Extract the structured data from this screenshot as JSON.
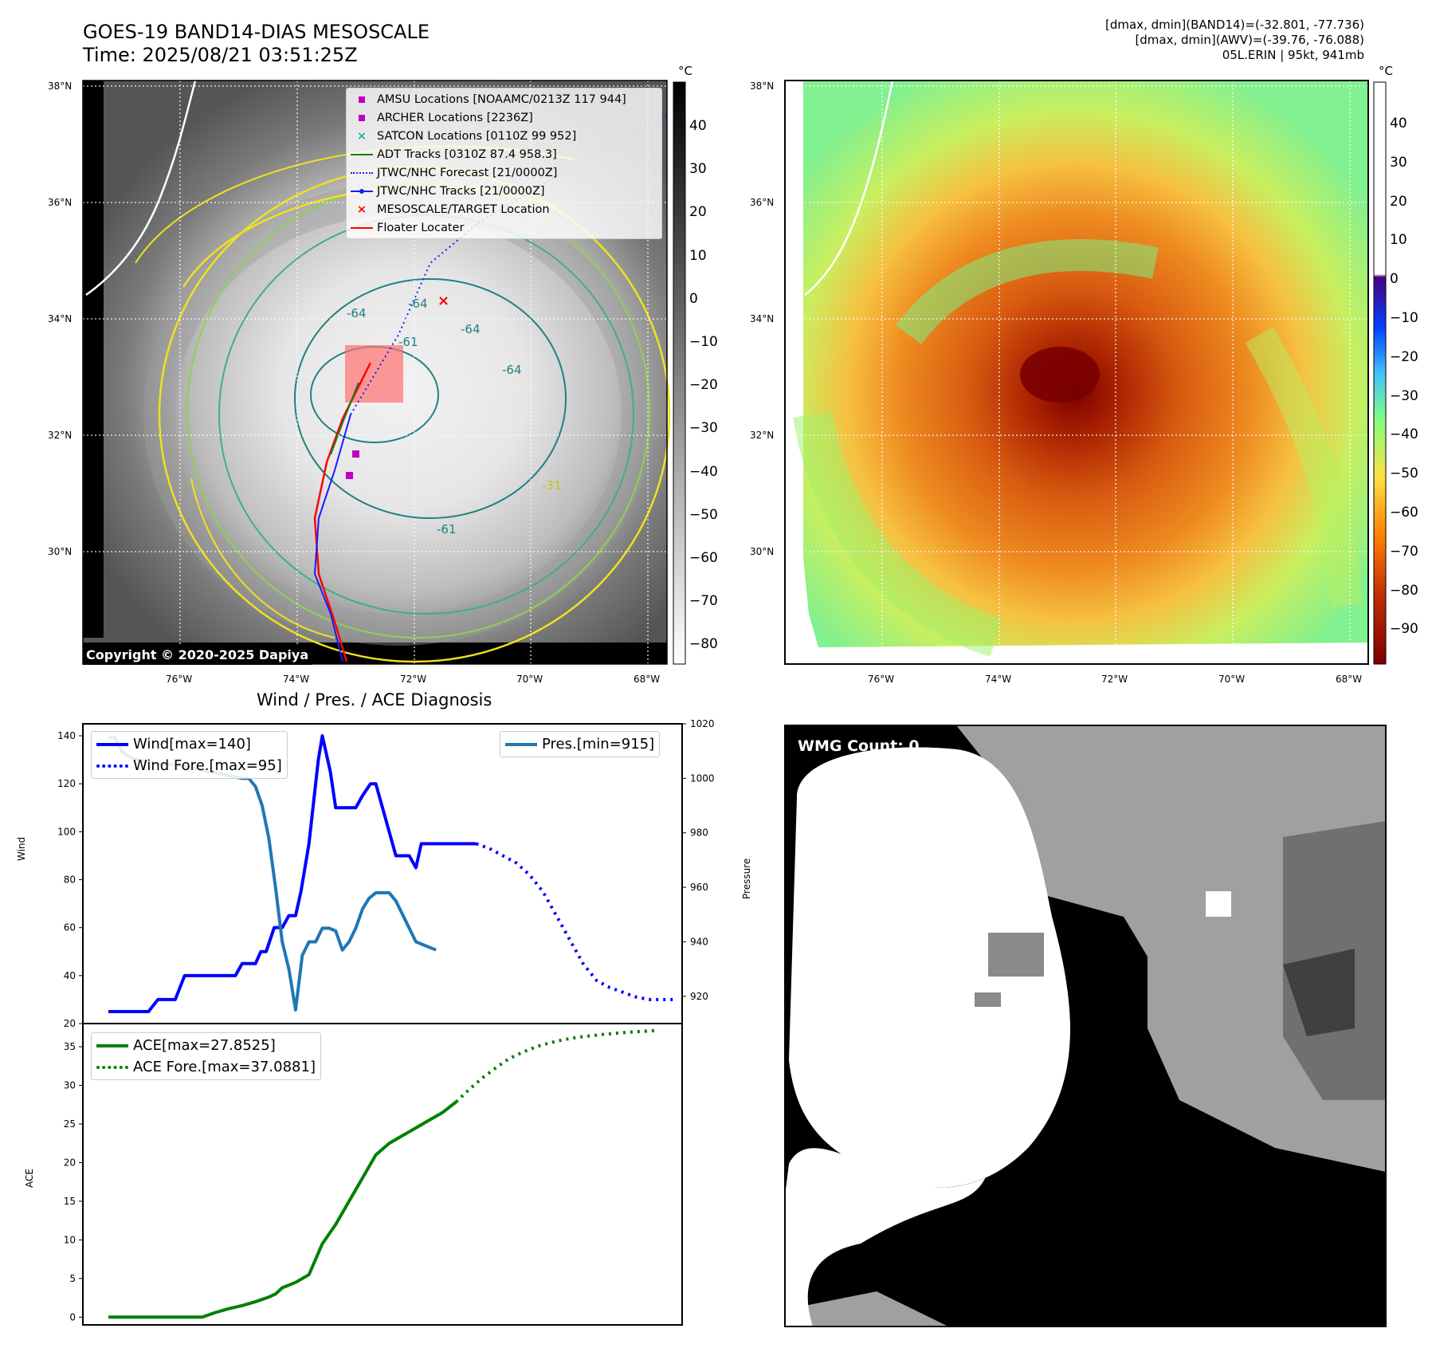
{
  "header": {
    "title_line1": "GOES-19 BAND14-DIAS MESOSCALE",
    "title_line2": "Time: 2025/08/21 03:51:25Z",
    "right_line1": "[dmax, dmin](BAND14)=(-32.801, -77.736)",
    "right_line2": "[dmax, dmin](AWV)=(-39.76, -76.088)",
    "right_line3": "05L.ERIN | 95kt, 941mb"
  },
  "maps": {
    "lat_labels": [
      "38°N",
      "36°N",
      "34°N",
      "32°N",
      "30°N"
    ],
    "lon_labels": [
      "76°W",
      "74°W",
      "72°W",
      "70°W",
      "68°W"
    ],
    "copyright": "Copyright © 2020-2025 Dapiya",
    "contour_labels": [
      "-64",
      "-64",
      "-64",
      "-64",
      "-61",
      "-31",
      "-61"
    ],
    "left_colorbar": {
      "unit": "°C",
      "ticks": [
        "40",
        "30",
        "20",
        "10",
        "0",
        "−10",
        "−20",
        "−30",
        "−40",
        "−50",
        "−60",
        "−70",
        "−80"
      ]
    },
    "right_colorbar": {
      "unit": "°C",
      "ticks": [
        "40",
        "30",
        "20",
        "10",
        "0",
        "−10",
        "−20",
        "−30",
        "−40",
        "−50",
        "−60",
        "−70",
        "−80",
        "−90"
      ]
    },
    "legend": [
      {
        "label": "AMSU Locations [NOAAMC/0213Z 117 944]",
        "symbol": "square",
        "color": "#c000c0"
      },
      {
        "label": "ARCHER Locations [2236Z]",
        "symbol": "square",
        "color": "#c000c0"
      },
      {
        "label": "SATCON Locations [0110Z 99 952]",
        "symbol": "x",
        "color": "#20b0a0"
      },
      {
        "label": "ADT Tracks [0310Z 87.4 958.3]",
        "symbol": "line",
        "color": "#1a7a1a"
      },
      {
        "label": "JTWC/NHC Forecast [21/0000Z]",
        "symbol": "dotted",
        "color": "#1a1aff"
      },
      {
        "label": "JTWC/NHC Tracks [21/0000Z]",
        "symbol": "line-dot",
        "color": "#1a1aff"
      },
      {
        "label": "MESOSCALE/TARGET Location",
        "symbol": "x",
        "color": "#ff0000"
      },
      {
        "label": "Floater Locater",
        "symbol": "line",
        "color": "#ff0000"
      }
    ]
  },
  "wmg": {
    "label": "WMG Count: 0"
  },
  "chart_data": [
    {
      "type": "line",
      "title": "Wind / Pres. / ACE Diagnosis",
      "ylabel": "Wind",
      "ylabel_right": "Pressure",
      "ylim": [
        20,
        145
      ],
      "ylim_right": [
        910,
        1020
      ],
      "yticks": [
        "140",
        "120",
        "100",
        "80",
        "60",
        "40",
        "20"
      ],
      "yticks_right": [
        "1020",
        "1000",
        "980",
        "960",
        "940",
        "920"
      ],
      "series": [
        {
          "name": "Wind[max=140]",
          "color": "#0000ff",
          "style": "solid",
          "x": [
            0,
            1,
            2,
            3,
            3.7,
            5,
            5.7,
            7,
            8,
            9,
            9.5,
            10,
            10.5,
            11,
            11.4,
            11.8,
            12.4,
            13,
            13.5,
            14,
            14.4,
            15,
            15.7,
            16,
            16.6,
            17,
            17.3,
            17.6,
            18,
            18.5,
            19,
            19.6,
            20,
            20.5,
            21,
            21.5,
            22,
            22.5,
            23,
            23.4,
            24,
            24.6,
            25,
            25.5,
            26,
            26.5,
            27,
            27.5
          ],
          "values": [
            25,
            25,
            25,
            25,
            30,
            30,
            40,
            40,
            40,
            40,
            40,
            45,
            45,
            45,
            50,
            50,
            60,
            60,
            65,
            65,
            75,
            95,
            130,
            140,
            125,
            110,
            110,
            110,
            110,
            110,
            115,
            120,
            120,
            110,
            100,
            90,
            90,
            90,
            85,
            95,
            95,
            95,
            95,
            95,
            95,
            95,
            95,
            95
          ]
        },
        {
          "name": "Wind Fore.[max=95]",
          "color": "#0000ff",
          "style": "dotted",
          "x": [
            0,
            1,
            2,
            3,
            4,
            5,
            6,
            7,
            8,
            9,
            10,
            11,
            12,
            13,
            14,
            15
          ],
          "values": [
            95,
            93,
            90,
            87,
            82,
            75,
            65,
            55,
            45,
            38,
            35,
            33,
            31,
            30,
            30,
            30
          ]
        },
        {
          "name": "Pres.[min=915]",
          "color": "#1f77b4",
          "style": "solid",
          "axis": "right",
          "x": [
            0,
            0.5,
            1,
            1.5,
            2,
            3,
            4,
            5,
            6,
            7,
            8,
            9,
            10,
            10.5,
            11,
            11.5,
            12,
            12.5,
            13,
            13.5,
            14,
            14.5,
            15,
            15.5,
            16,
            16.5,
            17,
            17.5,
            18,
            18.5,
            19,
            19.5,
            20,
            20.5,
            21,
            21.5,
            22,
            22.5,
            23,
            23.5,
            24,
            24.5
          ],
          "values": [
            1015,
            1015,
            1010,
            1008,
            1007,
            1006,
            1005,
            1005,
            1004,
            1003,
            1002,
            1001,
            1000,
            1000,
            997,
            990,
            978,
            960,
            940,
            930,
            915,
            935,
            940,
            940,
            945,
            945,
            944,
            937,
            940,
            945,
            952,
            956,
            958,
            958,
            958,
            955,
            950,
            945,
            940,
            939,
            938,
            937
          ]
        }
      ]
    },
    {
      "type": "line",
      "ylabel": "ACE",
      "ylim": [
        -1,
        38
      ],
      "yticks": [
        "35",
        "30",
        "25",
        "20",
        "15",
        "10",
        "5",
        "0"
      ],
      "series": [
        {
          "name": "ACE[max=27.8525]",
          "color": "#008000",
          "style": "solid",
          "x": [
            0,
            1,
            2,
            3,
            4,
            5,
            6,
            7,
            8,
            9,
            10,
            11,
            12,
            12.5,
            13,
            14,
            15,
            16,
            17,
            18,
            19,
            20,
            21,
            22,
            23,
            24,
            25,
            26
          ],
          "values": [
            0,
            0,
            0,
            0,
            0,
            0,
            0,
            0,
            0.6,
            1.1,
            1.5,
            2.0,
            2.6,
            3.0,
            3.8,
            4.5,
            5.5,
            9.5,
            12,
            15,
            18,
            21,
            22.5,
            23.5,
            24.5,
            25.5,
            26.5,
            27.85
          ]
        },
        {
          "name": "ACE Fore.[max=37.0881]",
          "color": "#008000",
          "style": "dotted",
          "x": [
            26,
            27,
            28,
            29,
            30,
            31,
            32,
            33,
            34,
            35,
            36,
            37,
            38,
            39,
            40,
            41
          ],
          "values": [
            27.85,
            29.5,
            31,
            32.3,
            33.5,
            34.3,
            35,
            35.5,
            35.9,
            36.2,
            36.4,
            36.6,
            36.75,
            36.9,
            37.0,
            37.09
          ]
        }
      ]
    }
  ]
}
